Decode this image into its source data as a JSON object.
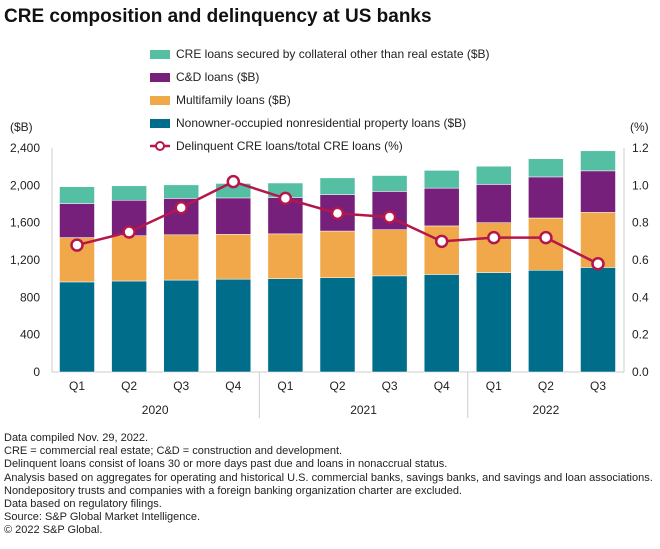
{
  "title": "CRE composition and delinquency at US banks",
  "chart_data": {
    "type": "bar",
    "title": "CRE composition and delinquency at US banks",
    "categories": [
      "Q1",
      "Q2",
      "Q3",
      "Q4",
      "Q1",
      "Q2",
      "Q3",
      "Q4",
      "Q1",
      "Q2",
      "Q3"
    ],
    "years": [
      {
        "label": "2020",
        "span": 4
      },
      {
        "label": "2021",
        "span": 4
      },
      {
        "label": "2022",
        "span": 3
      }
    ],
    "y_left": {
      "label": "($B)",
      "range": [
        0,
        2400
      ],
      "ticks": [
        "0",
        "400",
        "800",
        "1,200",
        "1,600",
        "2,000",
        "2,400"
      ]
    },
    "y_right": {
      "label": "(%)",
      "range": [
        0,
        1.2
      ],
      "ticks": [
        "0.0",
        "0.2",
        "0.4",
        "0.6",
        "0.8",
        "1.0",
        "1.2"
      ]
    },
    "series": [
      {
        "name": "Nonowner-occupied nonresidential property loans ($B)",
        "color": "#006d8a",
        "kind": "bar",
        "values": [
          965,
          975,
          985,
          995,
          1000,
          1010,
          1030,
          1045,
          1065,
          1090,
          1120
        ]
      },
      {
        "name": "Multifamily loans ($B)",
        "color": "#f0a84b",
        "kind": "bar",
        "values": [
          475,
          485,
          485,
          480,
          480,
          500,
          495,
          520,
          535,
          560,
          590
        ]
      },
      {
        "name": "C&D loans ($B)",
        "color": "#76207c",
        "kind": "bar",
        "values": [
          365,
          380,
          390,
          390,
          390,
          390,
          410,
          405,
          410,
          440,
          445
        ]
      },
      {
        "name": "CRE loans secured by collateral other than real estate ($B)",
        "color": "#55bfa3",
        "kind": "bar",
        "values": [
          180,
          155,
          145,
          155,
          155,
          180,
          170,
          190,
          195,
          195,
          215
        ]
      },
      {
        "name": "Delinquent CRE loans/total CRE loans (%)",
        "color": "#b5174b",
        "kind": "line",
        "axis": "right",
        "values": [
          0.68,
          0.75,
          0.88,
          1.02,
          0.93,
          0.85,
          0.83,
          0.7,
          0.72,
          0.72,
          0.58
        ]
      }
    ],
    "legend_order": [
      3,
      2,
      1,
      0,
      4
    ],
    "legend": "top"
  },
  "notes": [
    "Data compiled Nov. 29, 2022.",
    "CRE = commercial real estate; C&D = construction and development.",
    "Delinquent loans consist of loans 30 or more days past due and loans in nonaccrual status.",
    "Analysis based on aggregates for operating and historical U.S. commercial banks, savings banks, and savings and loan associations. Nondepository trusts and companies with a foreign banking organization charter are excluded.",
    "Data based on regulatory filings.",
    "Source: S&P Global Market Intelligence.",
    "© 2022 S&P Global."
  ]
}
